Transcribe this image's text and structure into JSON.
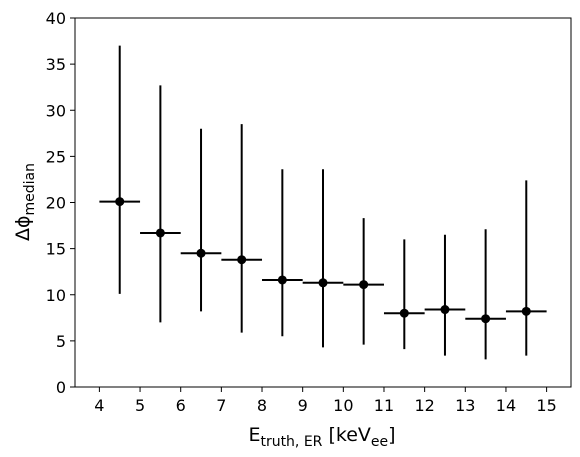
{
  "chart_data": {
    "type": "scatter",
    "title": "",
    "xlabel": {
      "main": "E",
      "sub": "truth, ER",
      "unit_pre": "[keV",
      "unit_sub": "ee",
      "unit_post": "]"
    },
    "ylabel": {
      "main": "Δϕ",
      "sub": "median"
    },
    "xlim": [
      3.4,
      15.6
    ],
    "ylim": [
      0,
      40
    ],
    "xticks": [
      "4",
      "5",
      "6",
      "7",
      "8",
      "9",
      "10",
      "11",
      "12",
      "13",
      "14",
      "15"
    ],
    "yticks": [
      "0",
      "5",
      "10",
      "15",
      "20",
      "25",
      "30",
      "35",
      "40"
    ],
    "grid": false,
    "legend": "none",
    "color": "#000000",
    "series": [
      {
        "points": [
          {
            "x": 4.5,
            "y": 20.1,
            "xerr": 0.5,
            "ylow": 10.1,
            "yhigh": 37.0
          },
          {
            "x": 5.5,
            "y": 16.7,
            "xerr": 0.5,
            "ylow": 7.0,
            "yhigh": 32.7
          },
          {
            "x": 6.5,
            "y": 14.5,
            "xerr": 0.5,
            "ylow": 8.2,
            "yhigh": 28.0
          },
          {
            "x": 7.5,
            "y": 13.8,
            "xerr": 0.5,
            "ylow": 5.9,
            "yhigh": 28.5
          },
          {
            "x": 8.5,
            "y": 11.6,
            "xerr": 0.5,
            "ylow": 5.5,
            "yhigh": 23.6
          },
          {
            "x": 9.5,
            "y": 11.3,
            "xerr": 0.5,
            "ylow": 4.3,
            "yhigh": 23.6
          },
          {
            "x": 10.5,
            "y": 11.1,
            "xerr": 0.5,
            "ylow": 4.6,
            "yhigh": 18.3
          },
          {
            "x": 11.5,
            "y": 8.0,
            "xerr": 0.5,
            "ylow": 4.1,
            "yhigh": 16.0
          },
          {
            "x": 12.5,
            "y": 8.4,
            "xerr": 0.5,
            "ylow": 3.4,
            "yhigh": 16.5
          },
          {
            "x": 13.5,
            "y": 7.4,
            "xerr": 0.5,
            "ylow": 3.0,
            "yhigh": 17.1
          },
          {
            "x": 14.5,
            "y": 8.2,
            "xerr": 0.5,
            "ylow": 3.4,
            "yhigh": 22.4
          }
        ]
      }
    ]
  }
}
